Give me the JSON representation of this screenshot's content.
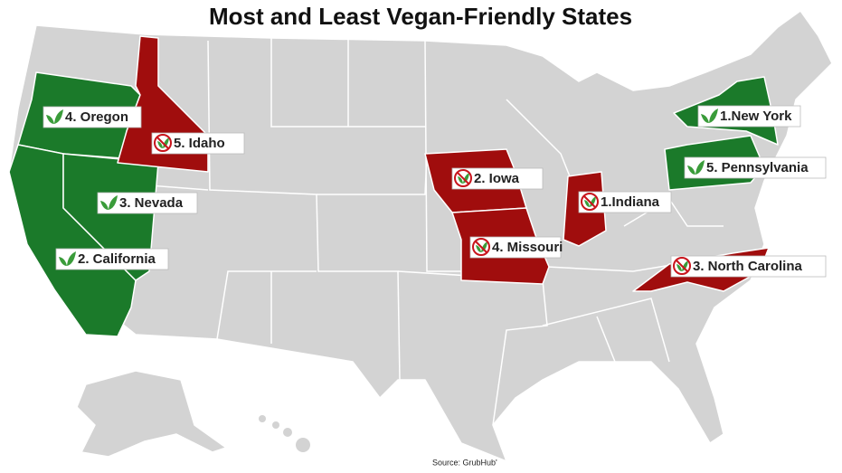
{
  "title": "Most and Least Vegan-Friendly States",
  "labels": [
    {
      "text": "4. Oregon"
    },
    {
      "text": "5. Idaho"
    },
    {
      "text": "3. Nevada"
    },
    {
      "text": "2. California"
    },
    {
      "text": "2. Iowa"
    },
    {
      "text": "1.Indiana"
    },
    {
      "text": "4. Missouri"
    },
    {
      "text": "3. North Carolina"
    },
    {
      "text": "1.New York"
    },
    {
      "text": "5. Pennsylvania"
    }
  ],
  "source": "Source:  GrubHub'"
}
